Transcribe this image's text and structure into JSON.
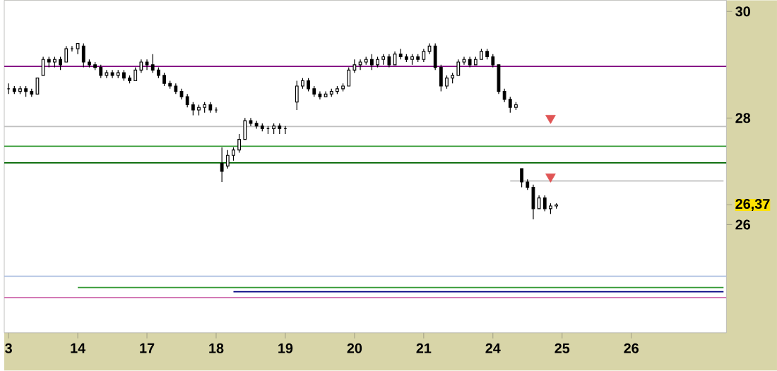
{
  "chart_data": {
    "type": "candlestick",
    "color": "#000000",
    "categories": [
      "3",
      null,
      null,
      null,
      null,
      null,
      null,
      null,
      null,
      null,
      null,
      null,
      "14",
      null,
      null,
      null,
      null,
      null,
      null,
      null,
      null,
      null,
      null,
      null,
      "17",
      null,
      null,
      null,
      null,
      null,
      null,
      null,
      null,
      null,
      null,
      null,
      "18",
      null,
      null,
      null,
      null,
      null,
      null,
      null,
      null,
      null,
      null,
      null,
      "19",
      null,
      null,
      null,
      null,
      null,
      null,
      null,
      null,
      null,
      null,
      null,
      "20",
      null,
      null,
      null,
      null,
      null,
      null,
      null,
      null,
      null,
      null,
      null,
      "21",
      null,
      null,
      null,
      null,
      null,
      null,
      null,
      null,
      null,
      null,
      null,
      "24",
      null,
      null,
      null,
      null,
      null,
      null,
      null,
      null,
      null,
      null,
      null,
      "25",
      null,
      null,
      null,
      null,
      null,
      null,
      null,
      null,
      null,
      null,
      null,
      "26",
      null,
      null,
      null,
      null,
      null,
      null,
      null,
      null,
      null,
      null,
      null,
      null,
      null,
      null,
      null,
      null
    ],
    "ohlc": [
      [
        28.55,
        28.65,
        28.45,
        28.55
      ],
      [
        28.55,
        28.6,
        28.45,
        28.5
      ],
      [
        28.5,
        28.6,
        28.45,
        28.55
      ],
      [
        28.55,
        28.6,
        28.4,
        28.5
      ],
      [
        28.5,
        28.55,
        28.4,
        28.45
      ],
      [
        28.45,
        28.75,
        28.45,
        28.75
      ],
      [
        28.8,
        29.15,
        28.8,
        29.1
      ],
      [
        29.1,
        29.15,
        28.95,
        29.05
      ],
      [
        29.05,
        29.15,
        28.95,
        29.1
      ],
      [
        29.1,
        29.15,
        28.9,
        29.0
      ],
      [
        29.05,
        29.35,
        29.05,
        29.3
      ],
      [
        29.3,
        29.35,
        29.25,
        29.3
      ],
      [
        29.3,
        29.4,
        29.2,
        29.4
      ],
      [
        29.35,
        29.4,
        28.95,
        29.05
      ],
      [
        29.05,
        29.1,
        28.95,
        29.0
      ],
      [
        29.0,
        29.05,
        28.9,
        28.95
      ],
      [
        28.95,
        29.0,
        28.75,
        28.8
      ],
      [
        28.8,
        28.9,
        28.75,
        28.85
      ],
      [
        28.85,
        28.9,
        28.75,
        28.8
      ],
      [
        28.8,
        28.9,
        28.75,
        28.85
      ],
      [
        28.85,
        28.9,
        28.7,
        28.75
      ],
      [
        28.75,
        28.8,
        28.65,
        28.7
      ],
      [
        28.7,
        28.95,
        28.7,
        28.9
      ],
      [
        28.9,
        29.1,
        28.85,
        29.05
      ],
      [
        29.05,
        29.1,
        28.9,
        29.0
      ],
      [
        29.0,
        29.2,
        28.85,
        28.9
      ],
      [
        28.9,
        28.95,
        28.75,
        28.8
      ],
      [
        28.8,
        28.85,
        28.6,
        28.65
      ],
      [
        28.65,
        28.7,
        28.55,
        28.6
      ],
      [
        28.6,
        28.65,
        28.45,
        28.5
      ],
      [
        28.5,
        28.55,
        28.35,
        28.4
      ],
      [
        28.4,
        28.45,
        28.2,
        28.25
      ],
      [
        28.25,
        28.3,
        28.05,
        28.15
      ],
      [
        28.15,
        28.25,
        28.05,
        28.2
      ],
      [
        28.2,
        28.3,
        28.1,
        28.25
      ],
      [
        28.25,
        28.3,
        28.1,
        28.15
      ],
      [
        28.15,
        28.2,
        28.1,
        28.15
      ],
      [
        27.15,
        27.45,
        26.8,
        27.0
      ],
      [
        27.1,
        27.4,
        27.05,
        27.3
      ],
      [
        27.3,
        27.45,
        27.2,
        27.4
      ],
      [
        27.4,
        27.7,
        27.35,
        27.6
      ],
      [
        27.6,
        28.0,
        27.6,
        27.95
      ],
      [
        27.95,
        28.0,
        27.85,
        27.9
      ],
      [
        27.9,
        27.95,
        27.8,
        27.85
      ],
      [
        27.85,
        27.9,
        27.75,
        27.8
      ],
      [
        27.8,
        27.85,
        27.7,
        27.8
      ],
      [
        27.8,
        27.9,
        27.7,
        27.85
      ],
      [
        27.85,
        27.9,
        27.7,
        27.8
      ],
      [
        27.8,
        27.85,
        27.7,
        27.8
      ],
      null,
      [
        28.3,
        28.7,
        28.15,
        28.6
      ],
      [
        28.6,
        28.75,
        28.55,
        28.7
      ],
      [
        28.7,
        28.75,
        28.5,
        28.55
      ],
      [
        28.55,
        28.6,
        28.4,
        28.45
      ],
      [
        28.45,
        28.5,
        28.35,
        28.4
      ],
      [
        28.4,
        28.5,
        28.4,
        28.45
      ],
      [
        28.45,
        28.55,
        28.4,
        28.5
      ],
      [
        28.5,
        28.6,
        28.45,
        28.55
      ],
      [
        28.55,
        28.65,
        28.5,
        28.6
      ],
      [
        28.6,
        28.95,
        28.6,
        28.9
      ],
      [
        28.9,
        29.1,
        28.85,
        29.0
      ],
      [
        29.0,
        29.1,
        28.9,
        29.05
      ],
      [
        29.05,
        29.15,
        29.0,
        29.1
      ],
      [
        29.1,
        29.2,
        28.9,
        29.0
      ],
      [
        29.0,
        29.15,
        28.95,
        29.1
      ],
      [
        29.1,
        29.2,
        29.0,
        29.15
      ],
      [
        29.15,
        29.2,
        28.95,
        29.0
      ],
      [
        29.0,
        29.25,
        29.0,
        29.2
      ],
      [
        29.2,
        29.3,
        29.1,
        29.15
      ],
      [
        29.15,
        29.2,
        29.05,
        29.1
      ],
      [
        29.1,
        29.2,
        29.0,
        29.15
      ],
      [
        29.15,
        29.2,
        29.05,
        29.1
      ],
      [
        29.1,
        29.3,
        29.05,
        29.25
      ],
      [
        29.25,
        29.4,
        29.2,
        29.35
      ],
      [
        29.35,
        29.4,
        28.9,
        28.95
      ],
      [
        28.95,
        29.0,
        28.5,
        28.6
      ],
      [
        28.6,
        28.8,
        28.55,
        28.75
      ],
      [
        28.75,
        28.85,
        28.65,
        28.8
      ],
      [
        28.8,
        29.1,
        28.8,
        29.05
      ],
      [
        29.05,
        29.15,
        29.0,
        29.1
      ],
      [
        29.1,
        29.15,
        28.95,
        29.0
      ],
      [
        29.0,
        29.15,
        29.0,
        29.1
      ],
      [
        29.1,
        29.3,
        29.1,
        29.25
      ],
      [
        29.25,
        29.3,
        29.1,
        29.15
      ],
      [
        29.15,
        29.2,
        28.95,
        29.0
      ],
      [
        29.0,
        29.0,
        28.45,
        28.5
      ],
      [
        28.5,
        28.55,
        28.3,
        28.35
      ],
      [
        28.35,
        28.4,
        28.1,
        28.2
      ],
      [
        28.2,
        28.3,
        28.15,
        28.25
      ],
      [
        27.05,
        27.05,
        26.7,
        26.8
      ],
      [
        26.8,
        26.85,
        26.65,
        26.7
      ],
      [
        26.7,
        26.75,
        26.1,
        26.3
      ],
      [
        26.3,
        26.55,
        26.3,
        26.5
      ],
      [
        26.5,
        26.55,
        26.25,
        26.3
      ],
      [
        26.3,
        26.4,
        26.2,
        26.35
      ],
      [
        26.35,
        26.4,
        26.3,
        26.37
      ],
      null,
      null,
      null,
      null,
      null,
      null,
      null,
      null,
      null,
      null,
      null,
      null,
      null,
      null,
      null,
      null,
      null,
      null,
      null,
      null,
      null,
      null,
      null,
      null,
      null,
      null,
      null,
      null,
      null
    ],
    "ylim": [
      23.97,
      30.21
    ],
    "yticks": [
      26,
      {
        "value": 26.37,
        "label": "26,37"
      },
      28,
      30
    ],
    "ref_lines": [
      {
        "axis": "y",
        "value": 28.97,
        "color": "#800080"
      },
      {
        "axis": "y",
        "value": 27.84,
        "color": "#c0c0c0"
      },
      {
        "axis": "y",
        "value": 27.47,
        "color": "#339933"
      },
      {
        "axis": "y",
        "value": 27.16,
        "color": "#006600"
      },
      {
        "axis": "y",
        "value": 25.03,
        "color": "#a8bce0"
      },
      {
        "axis": "y",
        "value": 24.63,
        "color": "#d070b0"
      }
    ],
    "series": [
      {
        "type": "line",
        "color": "#339933",
        "values": [
          null,
          null,
          null,
          null,
          null,
          null,
          null,
          null,
          null,
          null,
          null,
          null,
          24.82,
          24.82,
          24.82,
          24.82,
          24.82,
          24.82,
          24.82,
          24.82,
          24.82,
          24.82,
          24.82,
          24.82,
          24.82,
          24.82,
          24.82,
          24.82,
          24.82,
          24.82,
          24.82,
          24.82,
          24.82,
          24.82,
          24.82,
          24.82,
          24.82,
          24.82,
          24.82,
          24.82,
          24.82,
          24.82,
          24.82,
          24.82,
          24.82,
          24.82,
          24.82,
          24.82,
          24.82,
          24.82,
          24.82,
          24.82,
          24.82,
          24.82,
          24.82,
          24.82,
          24.82,
          24.82,
          24.82,
          24.82,
          24.82,
          24.82,
          24.82,
          24.82,
          24.82,
          24.82,
          24.82,
          24.82,
          24.82,
          24.82,
          24.82,
          24.82,
          24.82,
          24.82,
          24.82,
          24.82,
          24.82,
          24.82,
          24.82,
          24.82,
          24.82,
          24.82,
          24.82,
          24.82,
          24.82,
          24.82,
          24.82,
          24.82,
          24.82,
          24.82,
          24.82,
          24.82,
          24.82,
          24.82,
          24.82,
          24.82,
          24.82,
          24.82,
          24.82,
          24.82,
          24.82,
          24.82,
          24.82,
          24.82,
          24.82,
          24.82,
          24.82,
          24.82,
          24.82,
          24.82,
          24.82,
          24.82,
          24.82,
          24.82,
          24.82,
          24.82,
          24.82,
          24.82,
          24.82,
          24.82,
          24.82,
          24.82,
          24.82,
          24.82,
          24.82
        ]
      },
      {
        "type": "line",
        "color": "#000080",
        "values": [
          null,
          null,
          null,
          null,
          null,
          null,
          null,
          null,
          null,
          null,
          null,
          null,
          null,
          null,
          null,
          null,
          null,
          null,
          null,
          null,
          null,
          null,
          null,
          null,
          null,
          null,
          null,
          null,
          null,
          null,
          null,
          null,
          null,
          null,
          null,
          null,
          null,
          null,
          null,
          24.74,
          24.74,
          24.74,
          24.74,
          24.74,
          24.74,
          24.74,
          24.74,
          24.74,
          24.74,
          24.74,
          24.74,
          24.74,
          24.74,
          24.74,
          24.74,
          24.74,
          24.74,
          24.74,
          24.74,
          24.74,
          24.74,
          24.74,
          24.74,
          24.74,
          24.74,
          24.74,
          24.74,
          24.74,
          24.74,
          24.74,
          24.74,
          24.74,
          24.74,
          24.74,
          24.74,
          24.74,
          24.74,
          24.74,
          24.74,
          24.74,
          24.74,
          24.74,
          24.74,
          24.74,
          24.74,
          24.74,
          24.74,
          24.74,
          24.74,
          24.74,
          24.74,
          24.74,
          24.74,
          24.74,
          24.74,
          24.74,
          24.74,
          24.74,
          24.74,
          24.74,
          24.74,
          24.74,
          24.74,
          24.74,
          24.74,
          24.74,
          24.74,
          24.74,
          24.74,
          24.74,
          24.74,
          24.74,
          24.74,
          24.74,
          24.74,
          24.74,
          24.74,
          24.74,
          24.74,
          24.74,
          24.74,
          24.74,
          24.74,
          24.74,
          24.74
        ]
      },
      {
        "type": "line",
        "color": "#c8c8c8",
        "values": [
          null,
          null,
          null,
          null,
          null,
          null,
          null,
          null,
          null,
          null,
          null,
          null,
          null,
          null,
          null,
          null,
          null,
          null,
          null,
          null,
          null,
          null,
          null,
          null,
          null,
          null,
          null,
          null,
          null,
          null,
          null,
          null,
          null,
          null,
          null,
          null,
          null,
          null,
          null,
          null,
          null,
          null,
          null,
          null,
          null,
          null,
          null,
          null,
          null,
          null,
          null,
          null,
          null,
          null,
          null,
          null,
          null,
          null,
          null,
          null,
          null,
          null,
          null,
          null,
          null,
          null,
          null,
          null,
          null,
          null,
          null,
          null,
          null,
          null,
          null,
          null,
          null,
          null,
          null,
          null,
          null,
          null,
          null,
          null,
          null,
          null,
          null,
          26.82,
          26.82,
          26.82,
          26.82,
          26.82,
          26.82,
          26.82,
          26.82,
          26.82,
          26.82,
          26.82,
          26.82,
          26.82,
          26.82,
          26.82,
          26.82,
          26.82,
          26.82,
          26.82,
          26.82,
          26.82,
          26.82,
          26.82,
          26.82,
          26.82,
          26.82,
          26.82,
          26.82,
          26.82,
          26.82,
          26.82,
          26.82,
          26.82,
          26.82,
          26.82,
          26.82,
          26.82,
          26.82
        ]
      },
      {
        "type": "scatter",
        "marker": "triangle",
        "color": "#e05555",
        "values": [
          null,
          null,
          null,
          null,
          null,
          null,
          null,
          null,
          null,
          null,
          null,
          null,
          null,
          null,
          null,
          null,
          null,
          null,
          null,
          null,
          null,
          null,
          null,
          null,
          null,
          null,
          null,
          null,
          null,
          null,
          null,
          null,
          null,
          null,
          null,
          null,
          null,
          null,
          null,
          null,
          null,
          null,
          null,
          null,
          null,
          null,
          null,
          null,
          null,
          null,
          null,
          null,
          null,
          null,
          null,
          null,
          null,
          null,
          null,
          null,
          null,
          null,
          null,
          null,
          null,
          null,
          null,
          null,
          null,
          null,
          null,
          null,
          null,
          null,
          null,
          null,
          null,
          null,
          null,
          null,
          null,
          null,
          null,
          null,
          null,
          null,
          null,
          null,
          null,
          null,
          null,
          null,
          null,
          null,
          28.0,
          null,
          null,
          null,
          null,
          null,
          null,
          null,
          null,
          null,
          null,
          null,
          null,
          null,
          null,
          null,
          null,
          null,
          null,
          null,
          null,
          null,
          null,
          null,
          null,
          null,
          null,
          null,
          null,
          null,
          null
        ]
      },
      {
        "type": "scatter",
        "marker": "triangle",
        "color": "#e05555",
        "values": [
          null,
          null,
          null,
          null,
          null,
          null,
          null,
          null,
          null,
          null,
          null,
          null,
          null,
          null,
          null,
          null,
          null,
          null,
          null,
          null,
          null,
          null,
          null,
          null,
          null,
          null,
          null,
          null,
          null,
          null,
          null,
          null,
          null,
          null,
          null,
          null,
          null,
          null,
          null,
          null,
          null,
          null,
          null,
          null,
          null,
          null,
          null,
          null,
          null,
          null,
          null,
          null,
          null,
          null,
          null,
          null,
          null,
          null,
          null,
          null,
          null,
          null,
          null,
          null,
          null,
          null,
          null,
          null,
          null,
          null,
          null,
          null,
          null,
          null,
          null,
          null,
          null,
          null,
          null,
          null,
          null,
          null,
          null,
          null,
          null,
          null,
          null,
          null,
          null,
          null,
          null,
          null,
          null,
          null,
          26.9,
          null,
          null,
          null,
          null,
          null,
          null,
          null,
          null,
          null,
          null,
          null,
          null,
          null,
          null,
          null,
          null,
          null,
          null,
          null,
          null,
          null,
          null,
          null,
          null,
          null,
          null,
          null,
          null,
          null,
          null
        ]
      }
    ]
  }
}
